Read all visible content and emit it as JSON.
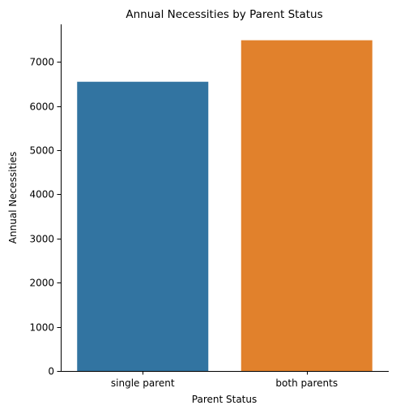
{
  "chart_data": {
    "type": "bar",
    "title": "Annual Necessities by Parent Status",
    "xlabel": "Parent Status",
    "ylabel": "Annual Necessities",
    "categories": [
      "single parent",
      "both parents"
    ],
    "values": [
      6550,
      7490
    ],
    "colors": [
      "#3274a1",
      "#e1812c"
    ],
    "ylim": [
      0,
      7850
    ],
    "yticks": [
      0,
      1000,
      2000,
      3000,
      4000,
      5000,
      6000,
      7000
    ],
    "grid": false,
    "legend": "none"
  }
}
